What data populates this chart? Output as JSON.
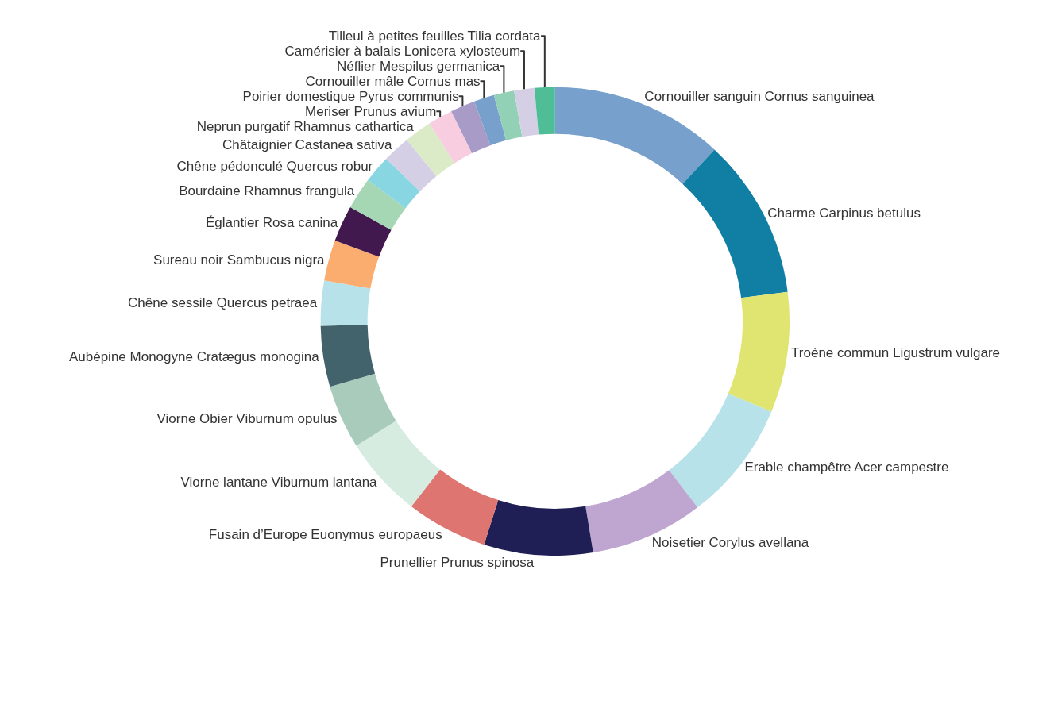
{
  "chart_data": {
    "type": "donut",
    "legend": false,
    "categories": [
      "Cornouiller sanguin Cornus sanguinea",
      "Charme Carpinus betulus",
      "Troène commun Ligustrum vulgare",
      "Erable champêtre Acer campestre",
      "Noisetier Corylus avellana",
      "Prunellier Prunus spinosa",
      "Fusain d’Europe Euonymus europaeus",
      "Viorne lantane Viburnum lantana",
      "Viorne Obier Viburnum opulus",
      "Aubépine Monogyne Cratægus monogina",
      "Chêne sessile Quercus petraea",
      "Sureau noir Sambucus nigra",
      "Églantier Rosa canina",
      "Bourdaine Rhamnus frangula",
      "Chêne pédonculé Quercus robur",
      "Châtaignier Castanea sativa",
      "Neprun purgatif Rhamnus cathartica",
      "Meriser Prunus avium",
      "Poirier domestique Pyrus communis",
      "Cornouiller mâle Cornus mas",
      "Néflier Mespilus germanica",
      "Camérisier à balais Lonicera xylosteum",
      "Tilleul à petites feuilles Tilia cordata"
    ],
    "values": [
      11.9,
      11.1,
      8.3,
      8.3,
      7.8,
      7.5,
      5.6,
      5.6,
      4.4,
      4.2,
      3.1,
      2.8,
      2.5,
      2.2,
      1.9,
      1.9,
      1.9,
      1.7,
      1.7,
      1.4,
      1.4,
      1.4,
      1.4
    ],
    "colors": [
      "#77a1cc",
      "#117fa4",
      "#e0e572",
      "#b7e2ea",
      "#bea6d0",
      "#201f55",
      "#de7570",
      "#d6ece0",
      "#a8cbbb",
      "#42636b",
      "#b7e2ea",
      "#fbad6f",
      "#42194f",
      "#a5d7b5",
      "#89d6e3",
      "#d5cfe6",
      "#dbeac7",
      "#f8cde0",
      "#a89bc7",
      "#77a1cc",
      "#93d1b6",
      "#d5cfe6",
      "#4fbd95"
    ]
  }
}
